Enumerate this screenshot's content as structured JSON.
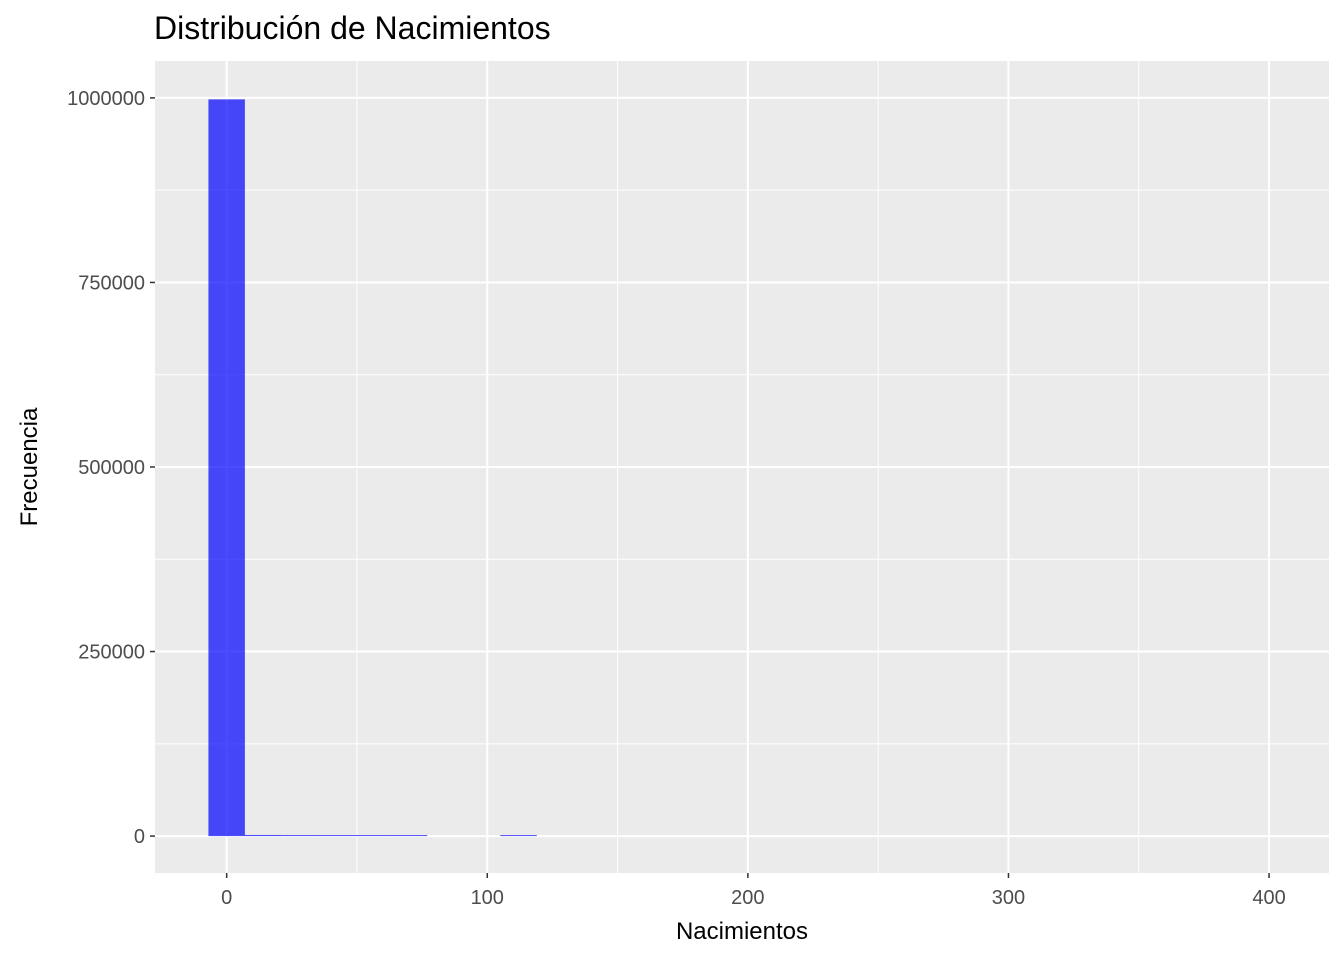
{
  "chart_data": {
    "type": "bar",
    "title": "Distribución de Nacimientos",
    "xlabel": "Nacimientos",
    "ylabel": "Frecuencia",
    "xlim": [
      -27.5,
      423
    ],
    "ylim": [
      -50000,
      1050000
    ],
    "x_ticks": [
      0,
      100,
      200,
      300,
      400
    ],
    "y_ticks": [
      0,
      250000,
      500000,
      750000,
      1000000
    ],
    "bar_color": "#0000FF",
    "bar_opacity": 0.7,
    "panel_color": "#EBEBEB",
    "grid": true,
    "bins": [
      {
        "x0": -7,
        "x1": 7,
        "count": 998000
      },
      {
        "x0": 7,
        "x1": 21,
        "count": 1500
      },
      {
        "x0": 21,
        "x1": 35,
        "count": 300
      },
      {
        "x0": 35,
        "x1": 49,
        "count": 150
      },
      {
        "x0": 49,
        "x1": 63,
        "count": 100
      },
      {
        "x0": 63,
        "x1": 77,
        "count": 80
      },
      {
        "x0": 77,
        "x1": 91,
        "count": 0
      },
      {
        "x0": 91,
        "x1": 105,
        "count": 0
      },
      {
        "x0": 105,
        "x1": 119,
        "count": 400
      }
    ]
  }
}
